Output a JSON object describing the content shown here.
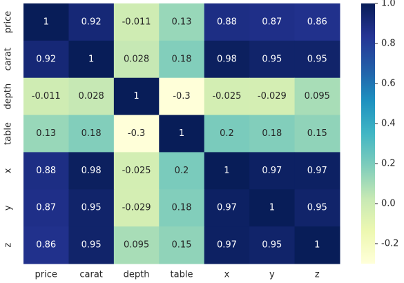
{
  "chart_data": {
    "type": "heatmap",
    "x_categories": [
      "price",
      "carat",
      "depth",
      "table",
      "x",
      "y",
      "z"
    ],
    "y_categories": [
      "price",
      "carat",
      "depth",
      "table",
      "x",
      "y",
      "z"
    ],
    "values": [
      [
        1,
        0.92,
        -0.011,
        0.13,
        0.88,
        0.87,
        0.86
      ],
      [
        0.92,
        1,
        0.028,
        0.18,
        0.98,
        0.95,
        0.95
      ],
      [
        -0.011,
        0.028,
        1,
        -0.3,
        -0.025,
        -0.029,
        0.095
      ],
      [
        0.13,
        0.18,
        -0.3,
        1,
        0.2,
        0.18,
        0.15
      ],
      [
        0.88,
        0.98,
        -0.025,
        0.2,
        1,
        0.97,
        0.97
      ],
      [
        0.87,
        0.95,
        -0.029,
        0.18,
        0.97,
        1,
        0.95
      ],
      [
        0.86,
        0.95,
        0.095,
        0.15,
        0.97,
        0.95,
        1
      ]
    ],
    "clim": [
      -0.3,
      1
    ],
    "cticks": [
      -0.2,
      {
        "value": 0,
        "label": "0.0"
      },
      0.2,
      0.4,
      0.6,
      0.8,
      {
        "value": 1,
        "label": "1.0"
      }
    ],
    "colormap": [
      "#ffffd9",
      "#edf8b1",
      "#c7e9b4",
      "#7fcdbb",
      "#41b6c4",
      "#1d91c0",
      "#225ea8",
      "#253494",
      "#081d58"
    ]
  }
}
